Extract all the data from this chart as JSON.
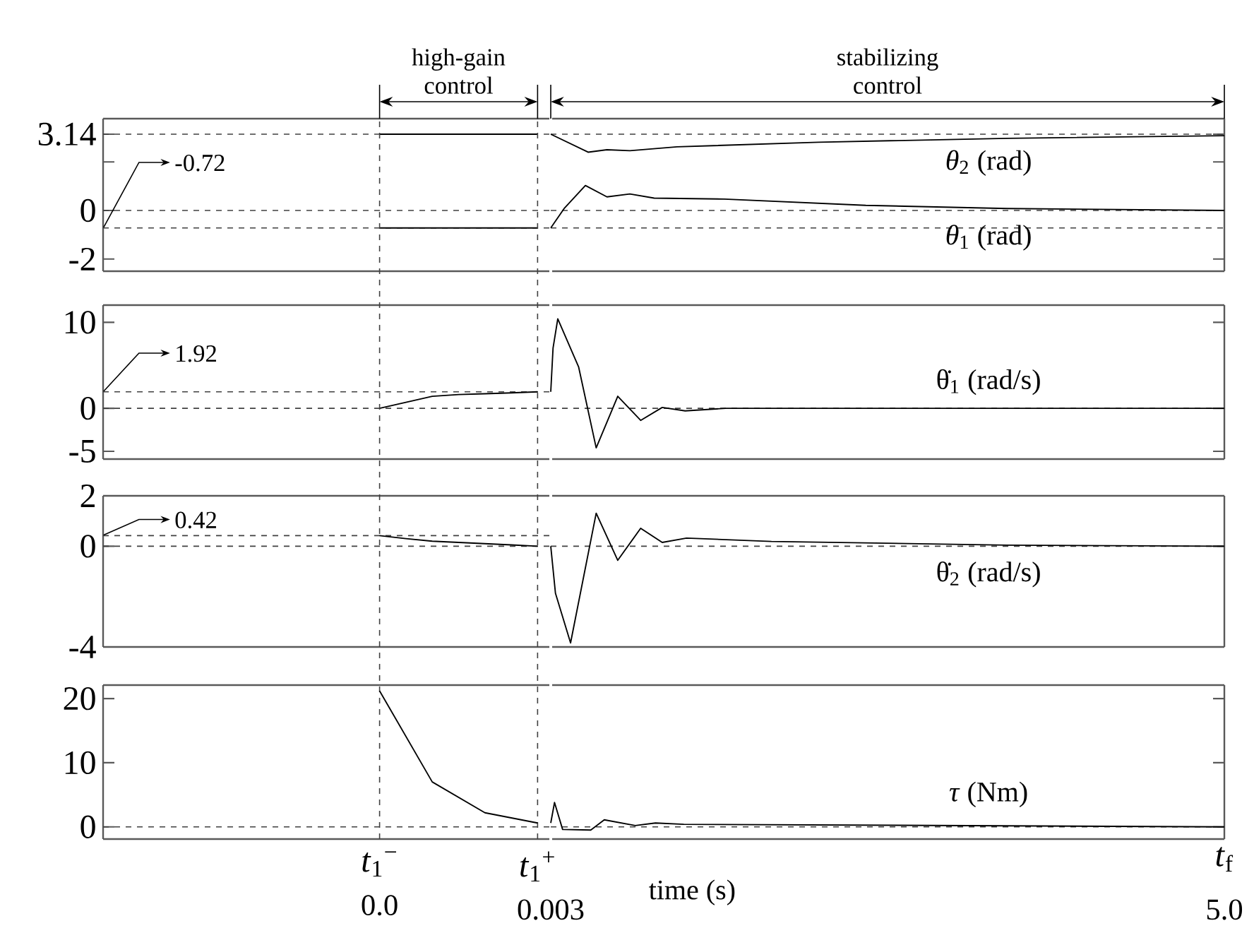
{
  "chart_data": [
    {
      "type": "line",
      "categories": [
        null,
        null,
        null,
        null,
        null,
        null,
        null,
        null,
        null,
        null,
        null,
        null,
        null,
        null,
        null,
        null,
        null
      ],
      "ylim": [
        -2.5,
        3.78
      ],
      "yticks": [
        -2,
        0,
        {
          "value": 2,
          "label": null
        },
        3.14
      ],
      "tick_labels": "y",
      "annotations": [
        "high-gain control"
      ],
      "ref_lines": [
        {
          "axis": "y",
          "value": 3.14,
          "line_style": "dashed",
          "color": "#404040"
        },
        {
          "axis": "y",
          "value": 0,
          "line_style": "dashed",
          "color": "#404040"
        },
        {
          "axis": "y",
          "value": -0.72,
          "label": "-0.72",
          "line_style": "dashed",
          "color": "#404040"
        }
      ],
      "series": [
        {
          "color": "#000000",
          "values": [
            null,
            null,
            null,
            null,
            null,
            null,
            null,
            null,
            null,
            null,
            3.14,
            3.14,
            3.14,
            3.14,
            3.14,
            3.14,
            3.14
          ]
        },
        {
          "color": "#000000",
          "values": [
            null,
            null,
            null,
            null,
            null,
            null,
            null,
            null,
            null,
            null,
            -0.72,
            -0.72,
            -0.72,
            -0.72,
            -0.72,
            -0.72,
            -0.72
          ]
        }
      ]
    },
    {
      "type": "line",
      "xlim": [
        0.003,
        5.0
      ],
      "ylim": [
        -2.5,
        3.78
      ],
      "yticks": [
        -2,
        0,
        {
          "value": 2,
          "label": null
        },
        3.14
      ],
      "tick_labels": false,
      "annotations": [
        "stabilizing control"
      ],
      "ref_lines": [
        {
          "axis": "y",
          "value": 3.14,
          "line_style": "dashed",
          "color": "#404040"
        },
        {
          "axis": "y",
          "value": 0,
          "line_style": "dashed",
          "color": "#404040"
        },
        {
          "axis": "y",
          "value": -0.72,
          "line_style": "dashed",
          "color": "#404040"
        }
      ],
      "series": [
        {
          "name": "*θ*$_{2}$ (rad)",
          "color": "#000000",
          "x": [
            0.003,
            0.28,
            0.42,
            0.59,
            0.94,
            1.99,
            3.39,
            5.0
          ],
          "values": [
            3.14,
            2.4,
            2.5,
            2.46,
            2.62,
            2.81,
            2.97,
            3.08
          ]
        },
        {
          "name": "*θ*$_{1}$ (rad)",
          "color": "#000000",
          "x": [
            0.003,
            0.105,
            0.26,
            0.42,
            0.59,
            0.77,
            1.29,
            2.34,
            3.39,
            5.0
          ],
          "values": [
            -0.72,
            0.1,
            1.03,
            0.56,
            0.68,
            0.51,
            0.47,
            0.21,
            0.08,
            0.0
          ]
        }
      ]
    },
    {
      "type": "line",
      "categories": [
        null,
        null,
        null,
        null,
        null,
        null,
        null,
        null,
        null,
        null,
        null,
        null,
        null,
        null,
        null,
        null,
        null
      ],
      "ylim": [
        -5.9,
        12.0
      ],
      "yticks": [
        -5,
        0,
        10
      ],
      "tick_labels": "y",
      "ref_lines": [
        {
          "axis": "y",
          "value": 1.92,
          "label": "1.92",
          "line_style": "dashed",
          "color": "#404040"
        },
        {
          "axis": "y",
          "value": 0,
          "line_style": "dashed",
          "color": "#404040"
        }
      ],
      "series": [
        {
          "color": "#000000",
          "values": [
            null,
            null,
            null,
            null,
            null,
            null,
            null,
            null,
            null,
            null,
            0,
            0.7,
            1.4,
            1.6,
            1.7,
            1.8,
            1.92
          ]
        }
      ]
    },
    {
      "type": "line",
      "xlim": [
        0.003,
        5.0
      ],
      "ylim": [
        -5.9,
        12.0
      ],
      "yticks": [
        -5,
        0,
        10
      ],
      "tick_labels": false,
      "ref_lines": [
        {
          "axis": "y",
          "value": 0,
          "line_style": "dashed",
          "color": "#404040"
        }
      ],
      "series": [
        {
          "name": "θ̇$_{1}$ (rad/s)",
          "color": "#000000",
          "x": [
            0.003,
            0.02,
            0.055,
            0.21,
            0.34,
            0.5,
            0.67,
            0.83,
            1.0,
            1.3,
            5.0
          ],
          "values": [
            1.92,
            7.0,
            10.4,
            4.8,
            -4.6,
            1.4,
            -1.4,
            0.1,
            -0.3,
            0,
            0
          ]
        }
      ]
    },
    {
      "type": "line",
      "categories": [
        null,
        null,
        null,
        null,
        null,
        null,
        null,
        null,
        null,
        null,
        null,
        null,
        null,
        null,
        null,
        null,
        null
      ],
      "ylim": [
        -4,
        2
      ],
      "yticks": [
        -4,
        0,
        2
      ],
      "tick_labels": "y",
      "ref_lines": [
        {
          "axis": "y",
          "value": 0.42,
          "label": "0.42",
          "line_style": "dashed",
          "color": "#404040"
        },
        {
          "axis": "y",
          "value": 0,
          "line_style": "dashed",
          "color": "#404040"
        }
      ],
      "series": [
        {
          "color": "#000000",
          "values": [
            null,
            null,
            null,
            null,
            null,
            null,
            null,
            null,
            null,
            null,
            0.42,
            0.3,
            0.2,
            0.15,
            0.1,
            0.05,
            0
          ]
        }
      ]
    },
    {
      "type": "line",
      "xlim": [
        0.003,
        5.0
      ],
      "ylim": [
        -4,
        2
      ],
      "yticks": [
        -4,
        0,
        2
      ],
      "tick_labels": false,
      "ref_lines": [
        {
          "axis": "y",
          "value": 0,
          "line_style": "dashed",
          "color": "#404040"
        }
      ],
      "series": [
        {
          "name": "θ̇$_{2}$ (rad/s)",
          "color": "#000000",
          "x": [
            0.003,
            0.038,
            0.15,
            0.34,
            0.5,
            0.67,
            0.83,
            1.01,
            1.64,
            3.39,
            5.0
          ],
          "values": [
            0,
            -1.87,
            -3.84,
            1.31,
            -0.56,
            0.71,
            0.15,
            0.32,
            0.19,
            0.04,
            0
          ]
        }
      ]
    },
    {
      "type": "line",
      "categories": [
        null,
        null,
        null,
        null,
        null,
        null,
        null,
        null,
        null,
        null,
        "*t*$_{1}$$^{−}$",
        null,
        null,
        null,
        null,
        null,
        "*t*$_{1}$$^{+}$"
      ],
      "ylim": [
        -1.9,
        22.1
      ],
      "yticks": [
        0,
        10,
        20
      ],
      "ref_lines": [
        {
          "axis": "x",
          "value": "*t*$_{1}$$^{−}$",
          "line_style": "dashed",
          "color": "#404040"
        },
        {
          "axis": "x",
          "value": "*t*$_{1}$$^{+}$",
          "line_style": "dashed",
          "color": "#404040"
        },
        {
          "axis": "y",
          "value": 0,
          "line_style": "dashed",
          "color": "#404040"
        }
      ],
      "annotations": [
        "0.0"
      ],
      "series": [
        {
          "color": "#000000",
          "values": [
            null,
            null,
            null,
            null,
            null,
            null,
            null,
            null,
            null,
            null,
            21.2,
            14.1,
            7.0,
            4.6,
            2.2,
            1.4,
            0.6
          ]
        }
      ]
    },
    {
      "type": "line",
      "xlim": [
        0.003,
        5.0
      ],
      "xticks": [
        {
          "value": 0.003,
          "label": "0.003"
        },
        {
          "value": 5.0,
          "label": "5.0"
        }
      ],
      "ylim": [
        -1.9,
        22.1
      ],
      "yticks": [
        0,
        10,
        20
      ],
      "tick_labels": "x",
      "xlabel": "time (s)",
      "ref_lines": [
        {
          "axis": "y",
          "value": 0,
          "line_style": "dashed",
          "color": "#404040"
        }
      ],
      "annotations": [
        "*t*$_{f}$"
      ],
      "series": [
        {
          "name": "*τ* (Nm)",
          "color": "#000000",
          "x": [
            0.003,
            0.031,
            0.091,
            0.3,
            0.4,
            0.63,
            0.78,
            0.99,
            5.0
          ],
          "values": [
            0.6,
            3.8,
            -0.4,
            -0.5,
            1.1,
            0.2,
            0.6,
            0.4,
            0
          ]
        }
      ]
    }
  ]
}
